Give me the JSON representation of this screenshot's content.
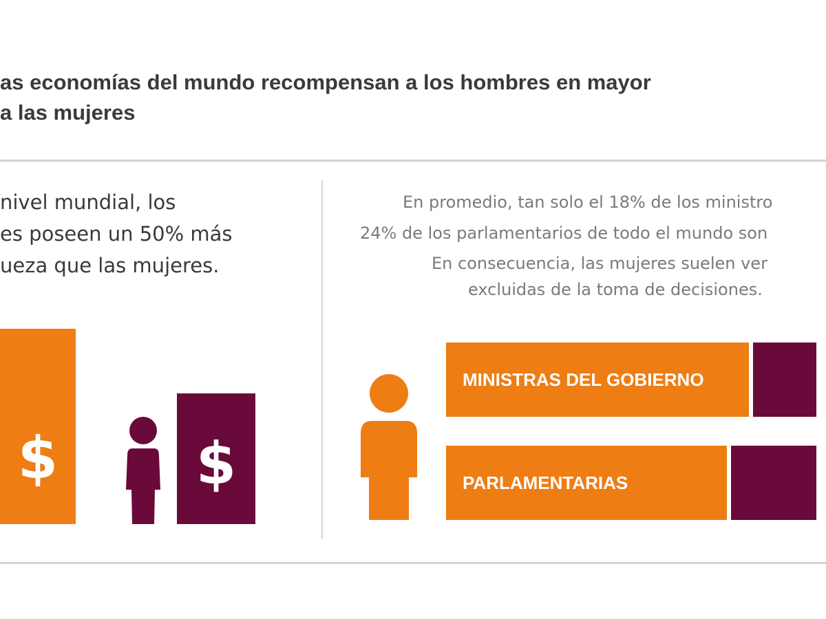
{
  "headline": {
    "line1": "as economías del mundo recompensan a los hombres en mayor",
    "line2": "a las mujeres"
  },
  "left_panel": {
    "line1": "nivel mundial, los",
    "line2": "es poseen un 50% más",
    "line3": "ueza que las mujeres.",
    "men_bar_symbol": "$",
    "women_bar_symbol": "$"
  },
  "right_panel": {
    "line1": "En promedio, tan solo el 18% de los ministro",
    "line2": "24% de los parlamentarios de todo el mundo son",
    "line3": "En consecuencia, las mujeres suelen ver",
    "line4": "excluidas de la toma de decisiones.",
    "bars": [
      {
        "label": "MINISTRAS DEL GOBIERNO"
      },
      {
        "label": "PARLAMENTARIAS"
      }
    ]
  },
  "colors": {
    "orange": "#ee7d14",
    "maroon": "#6a0a3a",
    "headline_text": "#3a3a3a",
    "body_text": "#7a7a7a",
    "rule": "#d2d2d2"
  },
  "icons": {
    "woman": "person-silhouette-icon",
    "person": "person-silhouette-icon"
  }
}
